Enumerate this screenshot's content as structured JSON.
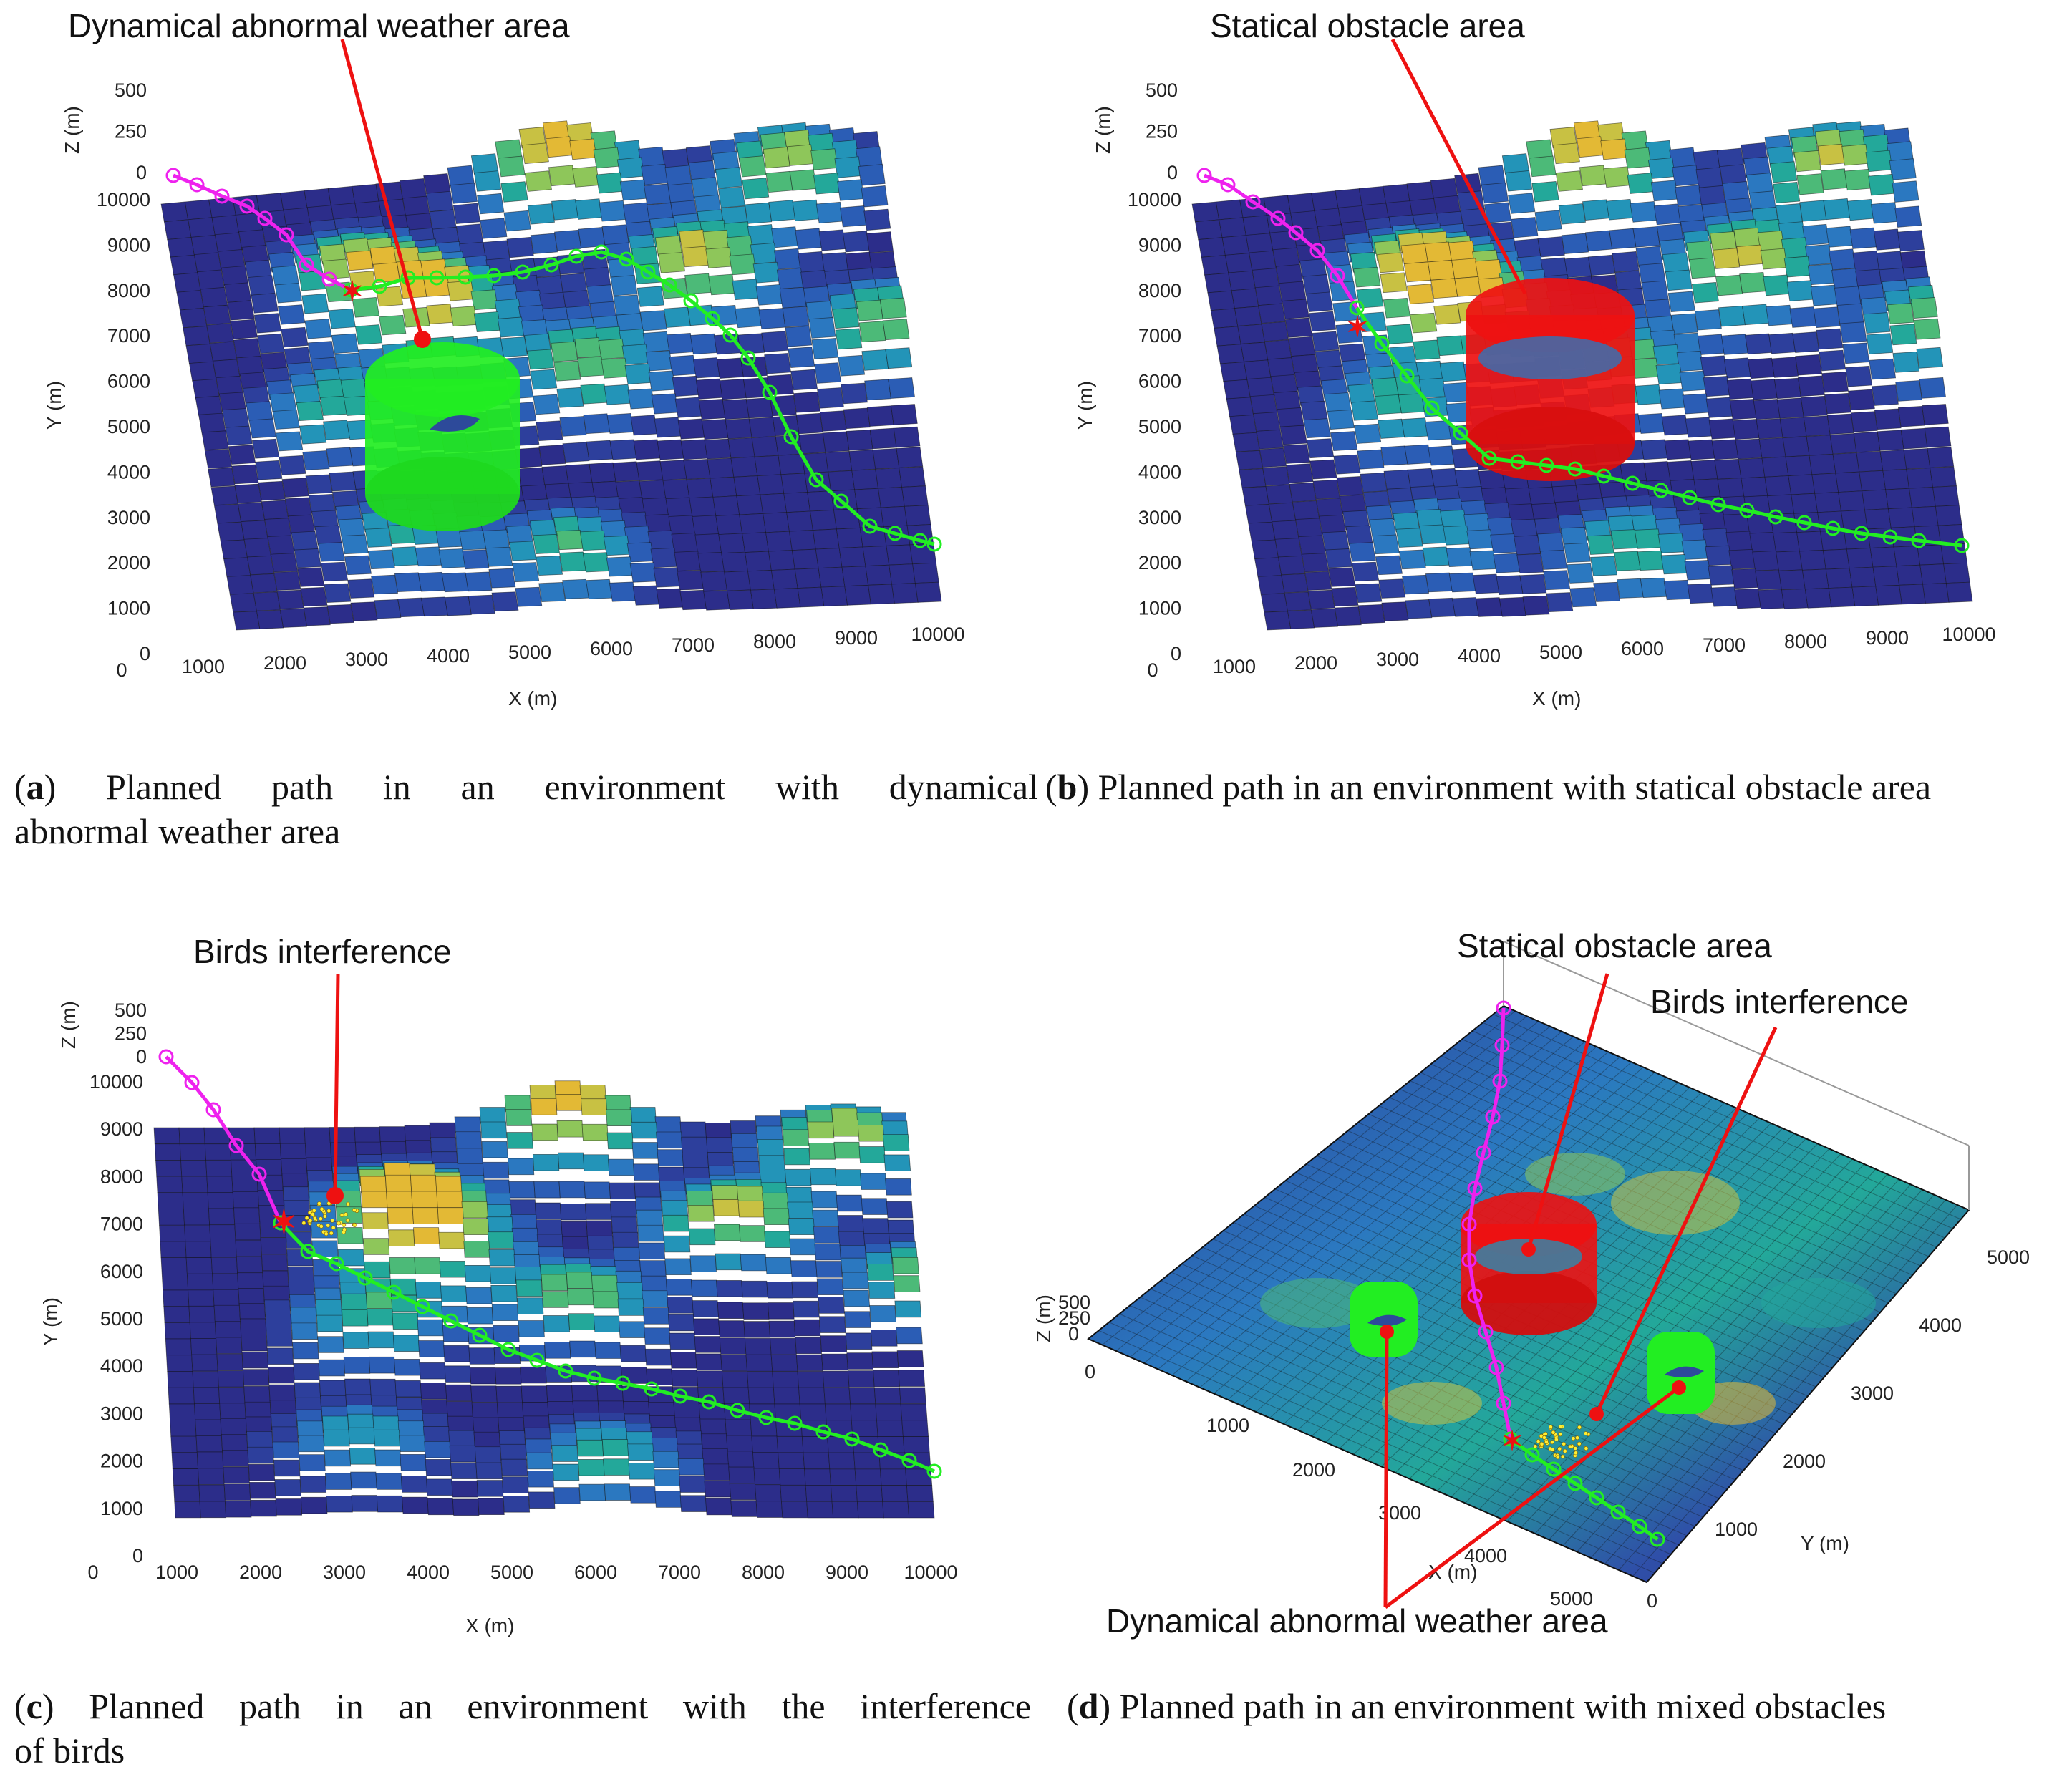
{
  "figure": {
    "panels": [
      {
        "id": "a",
        "caption_letter": "a",
        "caption_line1": "Planned path in an environment with dynamical",
        "caption_line2": "abnormal weather area",
        "annotations": [
          "Dynamical abnormal weather area"
        ]
      },
      {
        "id": "b",
        "caption_letter": "b",
        "caption_line1": "Planned path in an environment with statical obstacle area",
        "caption_line2": "",
        "annotations": [
          "Statical obstacle area"
        ]
      },
      {
        "id": "c",
        "caption_letter": "c",
        "caption_line1": "Planned path in an environment with the interference",
        "caption_line2": "of birds",
        "annotations": [
          "Birds interference"
        ]
      },
      {
        "id": "d",
        "caption_letter": "d",
        "caption_line1": "Planned path in an environment with mixed obstacles",
        "caption_line2": "",
        "annotations": [
          "Statical obstacle area",
          "Birds interference",
          "Dynamical abnormal weather area"
        ]
      }
    ]
  },
  "chart_data": [
    {
      "type": "surface",
      "panel": "a",
      "xlabel": "X (m)",
      "ylabel": "Y (m)",
      "zlabel": "Z (m)",
      "x_ticks": [
        "0",
        "1000",
        "2000",
        "3000",
        "4000",
        "5000",
        "6000",
        "7000",
        "8000",
        "9000",
        "10000"
      ],
      "y_ticks": [
        "0",
        "1000",
        "2000",
        "3000",
        "4000",
        "5000",
        "6000",
        "7000",
        "8000",
        "9000",
        "10000"
      ],
      "z_ticks": [
        "0",
        "250",
        "500"
      ],
      "xlim": [
        0,
        10000
      ],
      "ylim": [
        0,
        10000
      ],
      "zlim": [
        0,
        500
      ],
      "path_start_segment": [
        [
          0,
          10000
        ],
        [
          500,
          9750
        ],
        [
          1000,
          9400
        ],
        [
          1500,
          8900
        ],
        [
          1800,
          8350
        ],
        [
          2200,
          8100
        ]
      ],
      "path_end_segment": [
        [
          2200,
          8100
        ],
        [
          3000,
          8400
        ],
        [
          4000,
          8500
        ],
        [
          5000,
          8600
        ],
        [
          6000,
          8300
        ],
        [
          7000,
          7600
        ],
        [
          7600,
          6500
        ],
        [
          8000,
          5300
        ],
        [
          8600,
          3900
        ],
        [
          9300,
          3200
        ],
        [
          10000,
          2900
        ]
      ],
      "obstacle": {
        "kind": "dynamical weather cylinder",
        "center": [
          2600,
          5400
        ],
        "color": "#22ee22"
      }
    },
    {
      "type": "surface",
      "panel": "b",
      "xlabel": "X (m)",
      "ylabel": "Y (m)",
      "zlabel": "Z (m)",
      "x_ticks": [
        "0",
        "1000",
        "2000",
        "3000",
        "4000",
        "5000",
        "6000",
        "7000",
        "8000",
        "9000",
        "10000"
      ],
      "y_ticks": [
        "0",
        "1000",
        "2000",
        "3000",
        "4000",
        "5000",
        "6000",
        "7000",
        "8000",
        "9000",
        "10000"
      ],
      "z_ticks": [
        "0",
        "250",
        "500"
      ],
      "xlim": [
        0,
        10000
      ],
      "ylim": [
        0,
        10000
      ],
      "zlim": [
        0,
        500
      ],
      "path_start_segment": [
        [
          0,
          10000
        ],
        [
          500,
          9700
        ],
        [
          1000,
          9200
        ],
        [
          1500,
          8500
        ],
        [
          1800,
          7700
        ]
      ],
      "path_end_segment": [
        [
          1800,
          7700
        ],
        [
          2300,
          6600
        ],
        [
          2700,
          5600
        ],
        [
          3300,
          4700
        ],
        [
          4500,
          4400
        ],
        [
          6000,
          4000
        ],
        [
          7500,
          3600
        ],
        [
          9000,
          3200
        ],
        [
          10000,
          2900
        ]
      ],
      "obstacle": {
        "kind": "statical obstacle cylinder",
        "center": [
          3600,
          6600
        ],
        "color": "#ee1111"
      }
    },
    {
      "type": "surface",
      "panel": "c",
      "xlabel": "X (m)",
      "ylabel": "Y (m)",
      "zlabel": "Z (m)",
      "x_ticks": [
        "0",
        "1000",
        "2000",
        "3000",
        "4000",
        "5000",
        "6000",
        "7000",
        "8000",
        "9000",
        "10000"
      ],
      "y_ticks": [
        "0",
        "1000",
        "2000",
        "3000",
        "4000",
        "5000",
        "6000",
        "7000",
        "8000",
        "9000",
        "10000"
      ],
      "z_ticks": [
        "0",
        "250",
        "500"
      ],
      "xlim": [
        0,
        10000
      ],
      "ylim": [
        0,
        10000
      ],
      "zlim": [
        0,
        500
      ],
      "path_start_segment": [
        [
          0,
          10000
        ],
        [
          400,
          9700
        ],
        [
          800,
          9200
        ],
        [
          1100,
          8500
        ],
        [
          1400,
          7800
        ],
        [
          1600,
          7200
        ]
      ],
      "path_end_segment": [
        [
          1600,
          7200
        ],
        [
          2200,
          6600
        ],
        [
          3000,
          6100
        ],
        [
          4000,
          5500
        ],
        [
          5000,
          5000
        ],
        [
          6000,
          4500
        ],
        [
          7000,
          4000
        ],
        [
          8000,
          3500
        ],
        [
          9000,
          3000
        ],
        [
          10000,
          2500
        ]
      ],
      "obstacle": {
        "kind": "birds interference",
        "center": [
          2100,
          7400
        ],
        "color": "#ffee33"
      }
    },
    {
      "type": "surface",
      "panel": "d",
      "xlabel": "X (m)",
      "ylabel": "Y (m)",
      "zlabel": "Z (m)",
      "x_ticks": [
        "0",
        "1000",
        "2000",
        "3000",
        "4000",
        "5000"
      ],
      "y_ticks": [
        "0",
        "1000",
        "2000",
        "3000",
        "4000",
        "5000"
      ],
      "z_ticks": [
        "0",
        "250",
        "500"
      ],
      "xlim": [
        0,
        5000
      ],
      "ylim": [
        0,
        5000
      ],
      "zlim": [
        0,
        500
      ],
      "path_start_segment": [
        [
          0,
          5000
        ],
        [
          400,
          4300
        ],
        [
          900,
          3600
        ],
        [
          1500,
          2900
        ],
        [
          2100,
          2300
        ],
        [
          2700,
          1700
        ]
      ],
      "path_end_segment": [
        [
          2700,
          1700
        ],
        [
          3300,
          1200
        ],
        [
          4000,
          800
        ],
        [
          4600,
          500
        ],
        [
          5000,
          300
        ]
      ],
      "obstacles": [
        {
          "kind": "statical obstacle cylinder",
          "center": [
            2100,
            3300
          ],
          "color": "#ee1111"
        },
        {
          "kind": "dynamical weather cylinder",
          "center": [
            1900,
            1000
          ],
          "color": "#22ee22"
        },
        {
          "kind": "dynamical weather cylinder",
          "center": [
            3500,
            3900
          ],
          "color": "#22ee22"
        },
        {
          "kind": "birds interference",
          "center": [
            2900,
            2500
          ],
          "color": "#ffee33"
        }
      ]
    }
  ]
}
